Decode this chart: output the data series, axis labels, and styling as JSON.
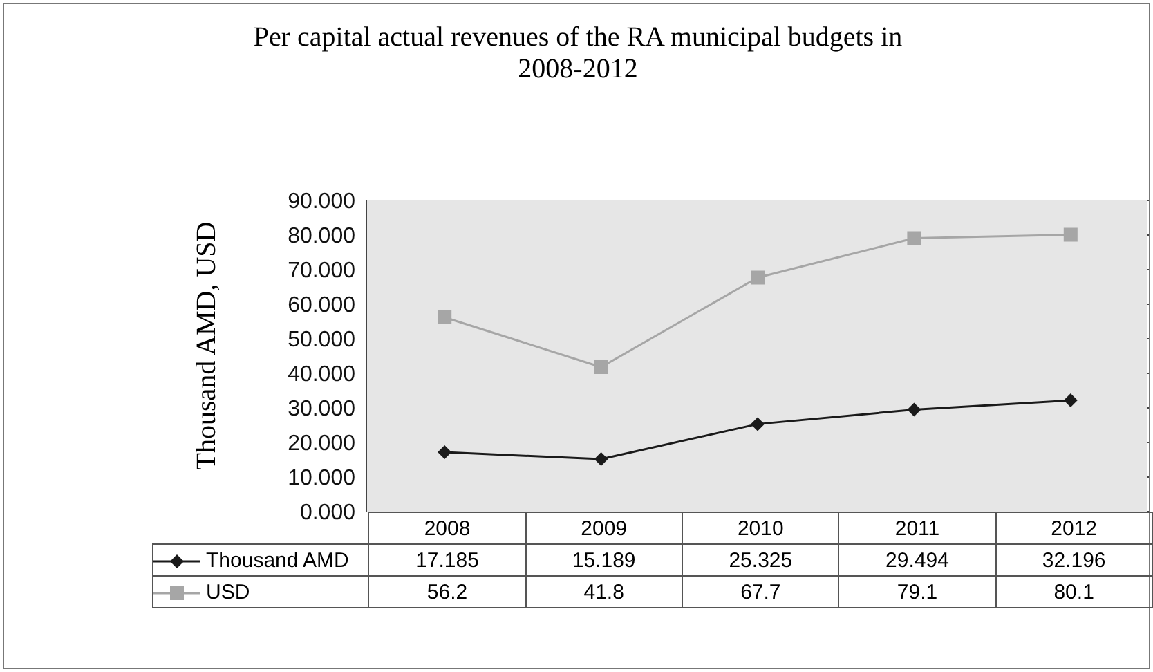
{
  "chart_data": {
    "type": "line",
    "title": "Per capital actual revenues of the RA municipal budgets in 2008-2012",
    "ylabel": "Thousand AMD, USD",
    "categories": [
      "2008",
      "2009",
      "2010",
      "2011",
      "2012"
    ],
    "series": [
      {
        "name": "Thousand AMD",
        "color": "#1a1a1a",
        "marker": "diamond",
        "values": [
          17.185,
          15.189,
          25.325,
          29.494,
          32.196
        ]
      },
      {
        "name": "USD",
        "color": "#a6a6a6",
        "marker": "square",
        "values": [
          56.2,
          41.8,
          67.7,
          79.1,
          80.1
        ]
      }
    ],
    "ylim": [
      0,
      90
    ],
    "yticks": [
      {
        "value": 0,
        "label": "0.000"
      },
      {
        "value": 10,
        "label": "10.000"
      },
      {
        "value": 20,
        "label": "20.000"
      },
      {
        "value": 30,
        "label": "30.000"
      },
      {
        "value": 40,
        "label": "40.000"
      },
      {
        "value": 50,
        "label": "50.000"
      },
      {
        "value": 60,
        "label": "60.000"
      },
      {
        "value": 70,
        "label": "70.000"
      },
      {
        "value": 80,
        "label": "80.000"
      },
      {
        "value": 90,
        "label": "90.000"
      }
    ],
    "grid": "y",
    "legend": "bottom",
    "data_labels": true,
    "line_style": "solid"
  }
}
